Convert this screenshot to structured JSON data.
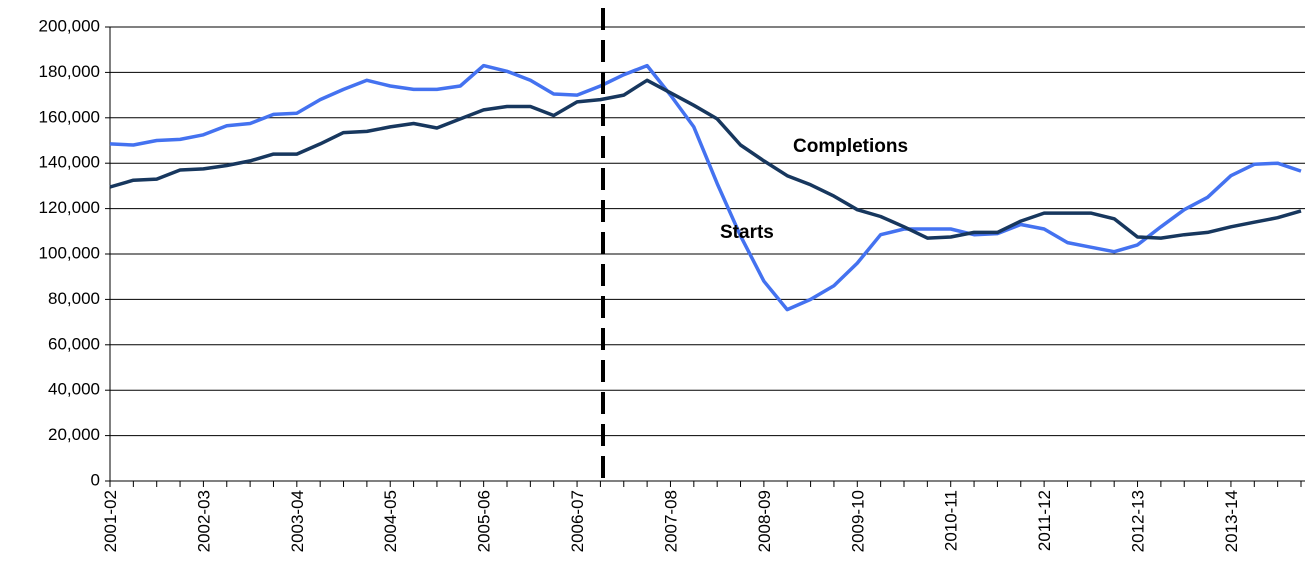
{
  "chart_data": {
    "type": "line",
    "categories": [
      "2001-02",
      null,
      null,
      null,
      "2002-03",
      null,
      null,
      null,
      "2003-04",
      null,
      null,
      null,
      "2004-05",
      null,
      null,
      null,
      "2005-06",
      null,
      null,
      null,
      "2006-07",
      null,
      null,
      null,
      "2007-08",
      null,
      null,
      null,
      "2008-09",
      null,
      null,
      null,
      "2009-10",
      null,
      null,
      null,
      "2010-11",
      null,
      null,
      null,
      "2011-12",
      null,
      null,
      null,
      "2012-13",
      null,
      null,
      null,
      "2013-14",
      null,
      null,
      null
    ],
    "series": [
      {
        "name": "Starts",
        "color": "#4472f0",
        "values": [
          148500,
          148000,
          150000,
          150500,
          152500,
          156500,
          157500,
          161500,
          162000,
          168000,
          172500,
          176500,
          174000,
          172500,
          172500,
          174000,
          183000,
          180500,
          176500,
          170500,
          170000,
          174000,
          179000,
          183000,
          170000,
          156000,
          131000,
          108000,
          88000,
          75500,
          80000,
          86000,
          96000,
          108500,
          111000,
          111000,
          111000,
          108500,
          109000,
          113000,
          111000,
          105000,
          103000,
          101000,
          104000,
          112000,
          119500,
          125000,
          134500,
          139500,
          140000,
          136500
        ]
      },
      {
        "name": "Completions",
        "color": "#17375e",
        "values": [
          129500,
          132500,
          133000,
          137000,
          137500,
          139000,
          141000,
          144000,
          144000,
          148500,
          153500,
          154000,
          156000,
          157500,
          155500,
          159500,
          163500,
          165000,
          165000,
          161000,
          167000,
          168000,
          170000,
          176500,
          171000,
          165500,
          159500,
          148000,
          141000,
          134500,
          130500,
          125500,
          119500,
          116500,
          112000,
          107000,
          107500,
          109500,
          109500,
          114500,
          118000,
          118000,
          118000,
          115500,
          107500,
          107000,
          108500,
          109500,
          112000,
          114000,
          116000,
          119000
        ]
      }
    ],
    "ylim": [
      0,
      200000
    ],
    "yticks": [
      0,
      {
        "value": 20000,
        "label": "20,000"
      },
      {
        "value": 40000,
        "label": "40,000"
      },
      {
        "value": 60000,
        "label": "60,000"
      },
      {
        "value": 80000,
        "label": "80,000"
      },
      {
        "value": 100000,
        "label": "100,000"
      },
      {
        "value": 120000,
        "label": "120,000"
      },
      {
        "value": 140000,
        "label": "140,000"
      },
      {
        "value": 160000,
        "label": "160,000"
      },
      {
        "value": 180000,
        "label": "180,000"
      },
      {
        "value": 200000,
        "label": "200,000"
      }
    ],
    "grid": true
  }
}
